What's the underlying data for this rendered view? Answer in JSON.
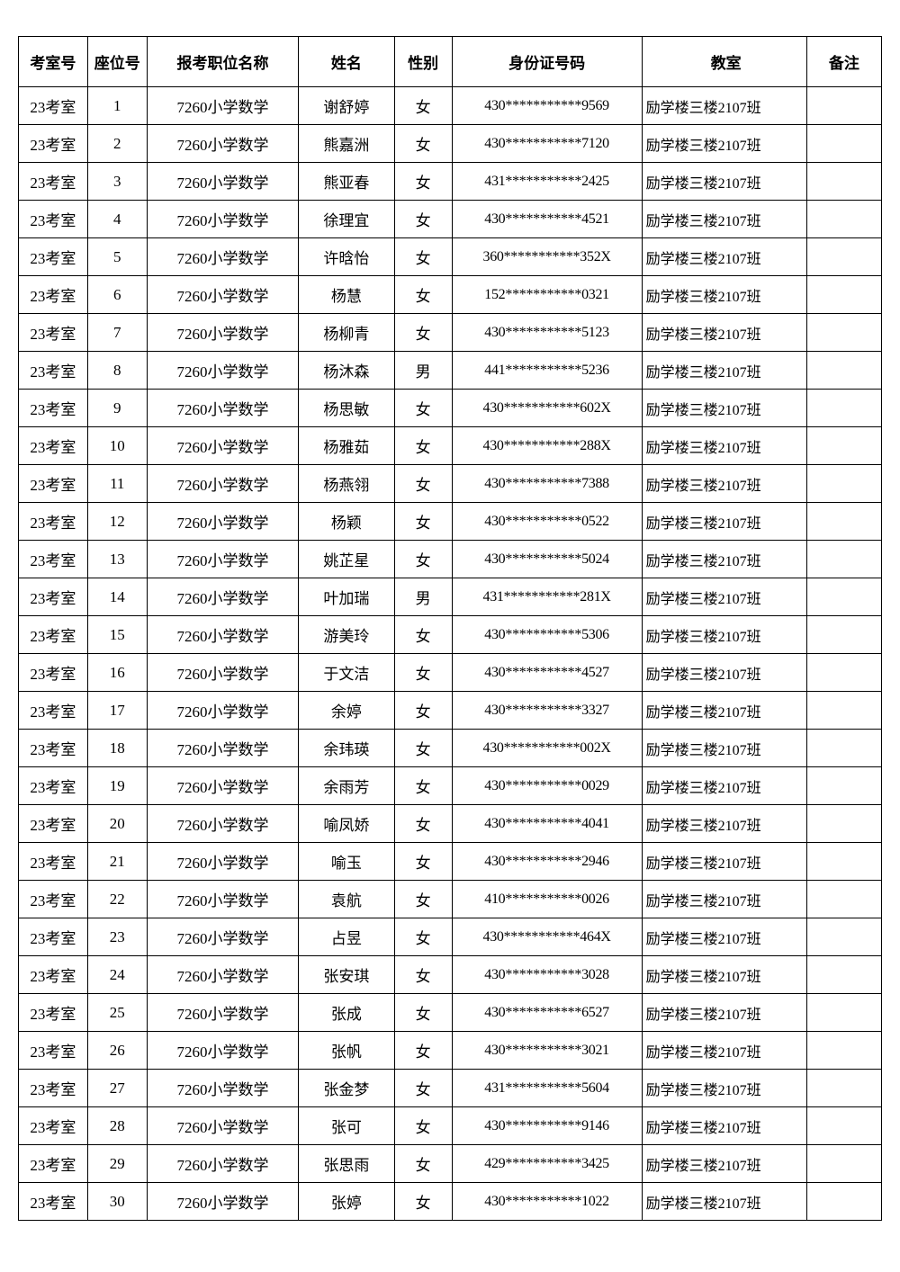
{
  "table": {
    "headers": {
      "room": "考室号",
      "seat": "座位号",
      "position": "报考职位名称",
      "name": "姓名",
      "gender": "性别",
      "id": "身份证号码",
      "classroom": "教室",
      "remark": "备注"
    },
    "rows": [
      {
        "room": "23考室",
        "seat": "1",
        "position": "7260小学数学",
        "name": "谢舒婷",
        "gender": "女",
        "id": "430***********9569",
        "classroom": "励学楼三楼2107班",
        "remark": ""
      },
      {
        "room": "23考室",
        "seat": "2",
        "position": "7260小学数学",
        "name": "熊嘉洲",
        "gender": "女",
        "id": "430***********7120",
        "classroom": "励学楼三楼2107班",
        "remark": ""
      },
      {
        "room": "23考室",
        "seat": "3",
        "position": "7260小学数学",
        "name": "熊亚春",
        "gender": "女",
        "id": "431***********2425",
        "classroom": "励学楼三楼2107班",
        "remark": ""
      },
      {
        "room": "23考室",
        "seat": "4",
        "position": "7260小学数学",
        "name": "徐理宜",
        "gender": "女",
        "id": "430***********4521",
        "classroom": "励学楼三楼2107班",
        "remark": ""
      },
      {
        "room": "23考室",
        "seat": "5",
        "position": "7260小学数学",
        "name": "许晗怡",
        "gender": "女",
        "id": "360***********352X",
        "classroom": "励学楼三楼2107班",
        "remark": ""
      },
      {
        "room": "23考室",
        "seat": "6",
        "position": "7260小学数学",
        "name": "杨慧",
        "gender": "女",
        "id": "152***********0321",
        "classroom": "励学楼三楼2107班",
        "remark": ""
      },
      {
        "room": "23考室",
        "seat": "7",
        "position": "7260小学数学",
        "name": "杨柳青",
        "gender": "女",
        "id": "430***********5123",
        "classroom": "励学楼三楼2107班",
        "remark": ""
      },
      {
        "room": "23考室",
        "seat": "8",
        "position": "7260小学数学",
        "name": "杨沐森",
        "gender": "男",
        "id": "441***********5236",
        "classroom": "励学楼三楼2107班",
        "remark": ""
      },
      {
        "room": "23考室",
        "seat": "9",
        "position": "7260小学数学",
        "name": "杨思敏",
        "gender": "女",
        "id": "430***********602X",
        "classroom": "励学楼三楼2107班",
        "remark": ""
      },
      {
        "room": "23考室",
        "seat": "10",
        "position": "7260小学数学",
        "name": "杨雅茹",
        "gender": "女",
        "id": "430***********288X",
        "classroom": "励学楼三楼2107班",
        "remark": ""
      },
      {
        "room": "23考室",
        "seat": "11",
        "position": "7260小学数学",
        "name": "杨燕翎",
        "gender": "女",
        "id": "430***********7388",
        "classroom": "励学楼三楼2107班",
        "remark": ""
      },
      {
        "room": "23考室",
        "seat": "12",
        "position": "7260小学数学",
        "name": "杨颖",
        "gender": "女",
        "id": "430***********0522",
        "classroom": "励学楼三楼2107班",
        "remark": ""
      },
      {
        "room": "23考室",
        "seat": "13",
        "position": "7260小学数学",
        "name": "姚芷星",
        "gender": "女",
        "id": "430***********5024",
        "classroom": "励学楼三楼2107班",
        "remark": ""
      },
      {
        "room": "23考室",
        "seat": "14",
        "position": "7260小学数学",
        "name": "叶加瑞",
        "gender": "男",
        "id": "431***********281X",
        "classroom": "励学楼三楼2107班",
        "remark": ""
      },
      {
        "room": "23考室",
        "seat": "15",
        "position": "7260小学数学",
        "name": "游美玲",
        "gender": "女",
        "id": "430***********5306",
        "classroom": "励学楼三楼2107班",
        "remark": ""
      },
      {
        "room": "23考室",
        "seat": "16",
        "position": "7260小学数学",
        "name": "于文洁",
        "gender": "女",
        "id": "430***********4527",
        "classroom": "励学楼三楼2107班",
        "remark": ""
      },
      {
        "room": "23考室",
        "seat": "17",
        "position": "7260小学数学",
        "name": "余婷",
        "gender": "女",
        "id": "430***********3327",
        "classroom": "励学楼三楼2107班",
        "remark": ""
      },
      {
        "room": "23考室",
        "seat": "18",
        "position": "7260小学数学",
        "name": "余玮瑛",
        "gender": "女",
        "id": "430***********002X",
        "classroom": "励学楼三楼2107班",
        "remark": ""
      },
      {
        "room": "23考室",
        "seat": "19",
        "position": "7260小学数学",
        "name": "余雨芳",
        "gender": "女",
        "id": "430***********0029",
        "classroom": "励学楼三楼2107班",
        "remark": ""
      },
      {
        "room": "23考室",
        "seat": "20",
        "position": "7260小学数学",
        "name": "喻凤娇",
        "gender": "女",
        "id": "430***********4041",
        "classroom": "励学楼三楼2107班",
        "remark": ""
      },
      {
        "room": "23考室",
        "seat": "21",
        "position": "7260小学数学",
        "name": "喻玉",
        "gender": "女",
        "id": "430***********2946",
        "classroom": "励学楼三楼2107班",
        "remark": ""
      },
      {
        "room": "23考室",
        "seat": "22",
        "position": "7260小学数学",
        "name": "袁航",
        "gender": "女",
        "id": "410***********0026",
        "classroom": "励学楼三楼2107班",
        "remark": ""
      },
      {
        "room": "23考室",
        "seat": "23",
        "position": "7260小学数学",
        "name": "占昱",
        "gender": "女",
        "id": "430***********464X",
        "classroom": "励学楼三楼2107班",
        "remark": ""
      },
      {
        "room": "23考室",
        "seat": "24",
        "position": "7260小学数学",
        "name": "张安琪",
        "gender": "女",
        "id": "430***********3028",
        "classroom": "励学楼三楼2107班",
        "remark": ""
      },
      {
        "room": "23考室",
        "seat": "25",
        "position": "7260小学数学",
        "name": "张成",
        "gender": "女",
        "id": "430***********6527",
        "classroom": "励学楼三楼2107班",
        "remark": ""
      },
      {
        "room": "23考室",
        "seat": "26",
        "position": "7260小学数学",
        "name": "张帆",
        "gender": "女",
        "id": "430***********3021",
        "classroom": "励学楼三楼2107班",
        "remark": ""
      },
      {
        "room": "23考室",
        "seat": "27",
        "position": "7260小学数学",
        "name": "张金梦",
        "gender": "女",
        "id": "431***********5604",
        "classroom": "励学楼三楼2107班",
        "remark": ""
      },
      {
        "room": "23考室",
        "seat": "28",
        "position": "7260小学数学",
        "name": "张可",
        "gender": "女",
        "id": "430***********9146",
        "classroom": "励学楼三楼2107班",
        "remark": ""
      },
      {
        "room": "23考室",
        "seat": "29",
        "position": "7260小学数学",
        "name": "张思雨",
        "gender": "女",
        "id": "429***********3425",
        "classroom": "励学楼三楼2107班",
        "remark": ""
      },
      {
        "room": "23考室",
        "seat": "30",
        "position": "7260小学数学",
        "name": "张婷",
        "gender": "女",
        "id": "430***********1022",
        "classroom": "励学楼三楼2107班",
        "remark": ""
      }
    ]
  }
}
